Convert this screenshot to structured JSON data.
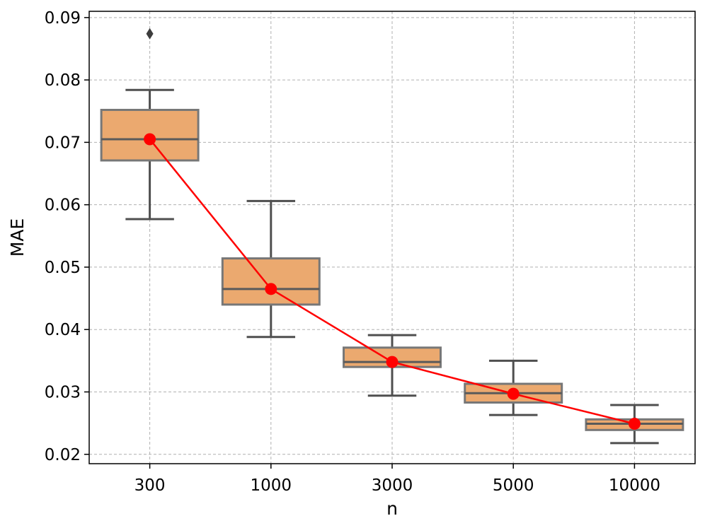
{
  "chart_data": {
    "type": "box",
    "title": "",
    "xlabel": "n",
    "ylabel": "MAE",
    "categories": [
      "300",
      "1000",
      "3000",
      "5000",
      "10000"
    ],
    "ylim": [
      0.0185,
      0.091
    ],
    "yticks": [
      0.02,
      0.03,
      0.04,
      0.05,
      0.06,
      0.07,
      0.08,
      0.09
    ],
    "ytick_labels": [
      "0.02",
      "0.03",
      "0.04",
      "0.05",
      "0.06",
      "0.07",
      "0.08",
      "0.09"
    ],
    "grid": true,
    "boxes": [
      {
        "category": "300",
        "whisker_low": 0.0577,
        "q1": 0.0671,
        "median": 0.0705,
        "q3": 0.0752,
        "whisker_high": 0.0784,
        "outliers": [
          0.0874
        ]
      },
      {
        "category": "1000",
        "whisker_low": 0.0388,
        "q1": 0.044,
        "median": 0.0465,
        "q3": 0.0514,
        "whisker_high": 0.0606,
        "outliers": []
      },
      {
        "category": "3000",
        "whisker_low": 0.0294,
        "q1": 0.034,
        "median": 0.0348,
        "q3": 0.0371,
        "whisker_high": 0.0391,
        "outliers": []
      },
      {
        "category": "5000",
        "whisker_low": 0.0263,
        "q1": 0.0283,
        "median": 0.0298,
        "q3": 0.0313,
        "whisker_high": 0.035,
        "outliers": []
      },
      {
        "category": "10000",
        "whisker_low": 0.0218,
        "q1": 0.0239,
        "median": 0.0249,
        "q3": 0.0256,
        "whisker_high": 0.0279,
        "outliers": []
      }
    ],
    "mean_line": {
      "values": [
        0.0705,
        0.0465,
        0.0348,
        0.0297,
        0.0249
      ],
      "color": "#ff0000"
    },
    "colors": {
      "box_fill": "#eba96f",
      "box_edge": "#5a5a5a",
      "whisker": "#4f4f4f",
      "grid": "#b0b0b0",
      "mean": "#ff0000"
    }
  }
}
